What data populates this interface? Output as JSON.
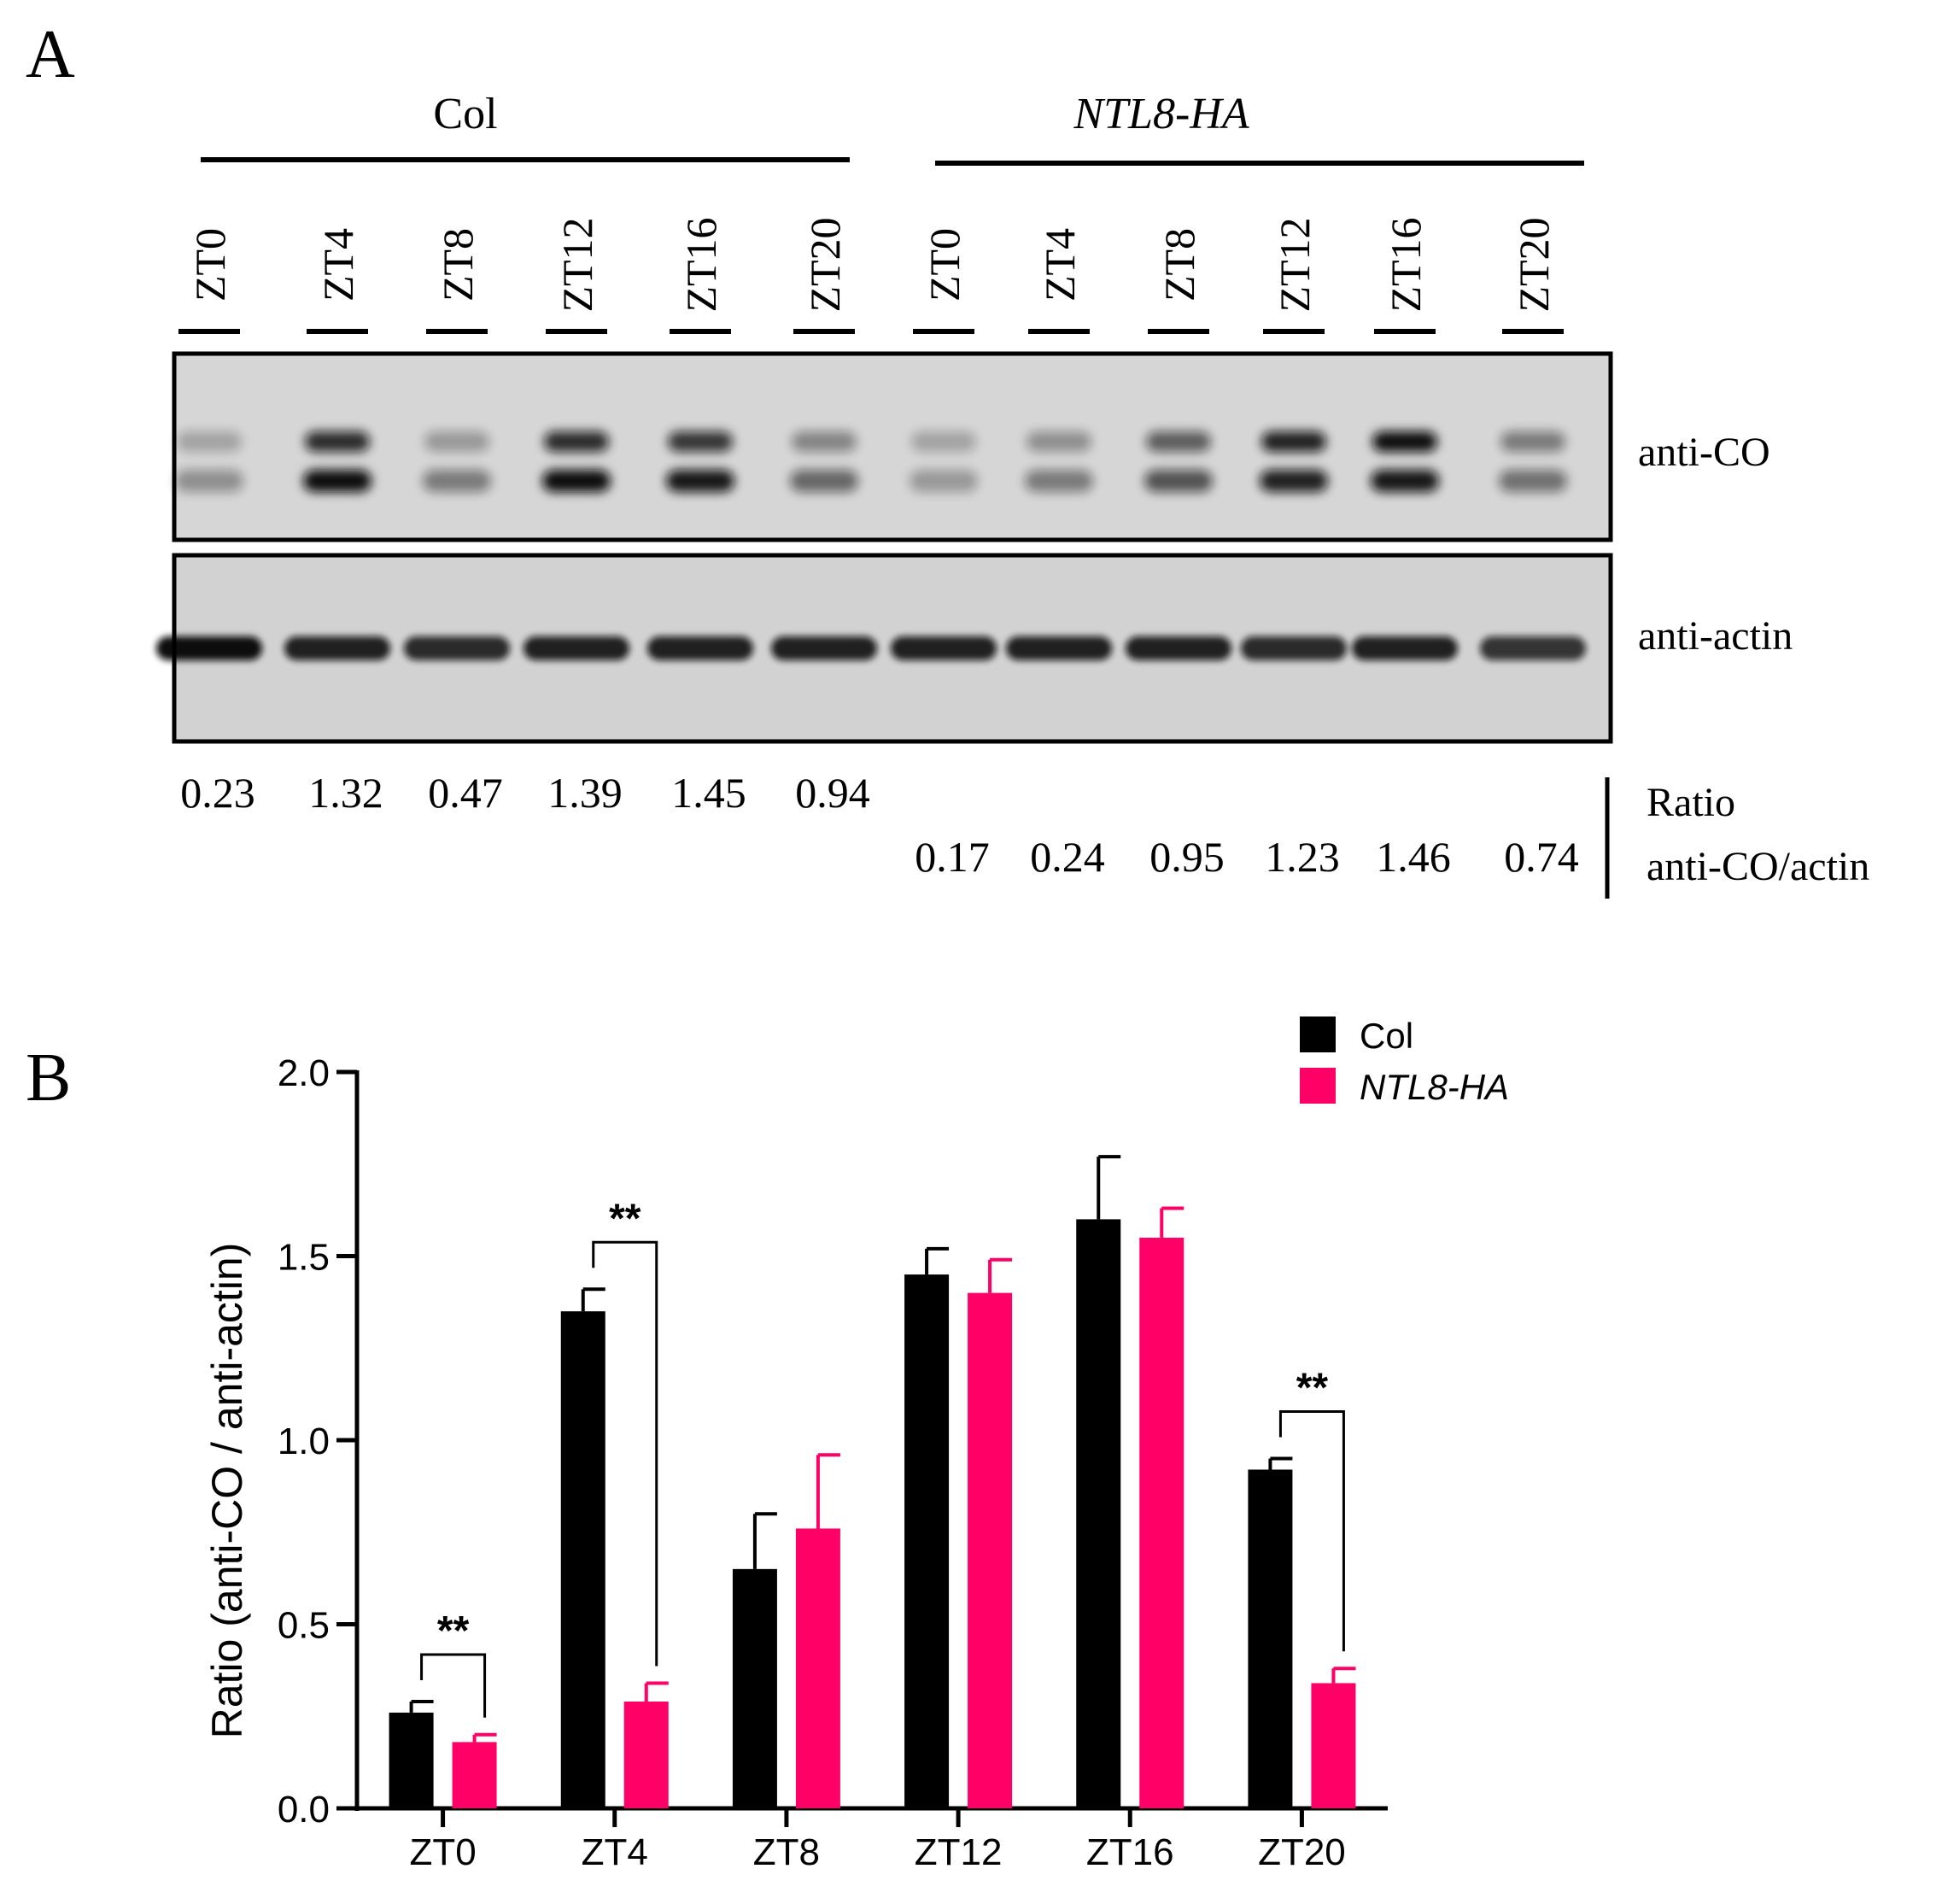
{
  "panel_a": {
    "label": "A",
    "group_labels": [
      "Col",
      "NTL8-HA"
    ],
    "lanes": [
      "ZT0",
      "ZT4",
      "ZT8",
      "ZT12",
      "ZT16",
      "ZT20",
      "ZT0",
      "ZT4",
      "ZT8",
      "ZT12",
      "ZT16",
      "ZT20"
    ],
    "blot_labels": [
      "anti-CO",
      "anti-actin"
    ],
    "ratios_col": [
      "0.23",
      "1.32",
      "0.47",
      "1.39",
      "1.45",
      "0.94"
    ],
    "ratios_ntl8": [
      "0.17",
      "0.24",
      "0.95",
      "1.23",
      "1.46",
      "0.74"
    ],
    "ratio_title_line1": "Ratio",
    "ratio_title_line2": "anti-CO/actin",
    "blot_band_intensity": {
      "anti-CO_upper": [
        0.25,
        0.85,
        0.3,
        0.85,
        0.8,
        0.4,
        0.25,
        0.35,
        0.6,
        0.9,
        1.0,
        0.45
      ],
      "anti-CO_lower": [
        0.35,
        1.0,
        0.45,
        1.0,
        0.95,
        0.55,
        0.3,
        0.45,
        0.65,
        0.9,
        0.95,
        0.5
      ],
      "anti-actin": [
        1.0,
        0.9,
        0.85,
        0.9,
        0.9,
        0.9,
        0.9,
        0.9,
        0.9,
        0.85,
        0.9,
        0.8
      ]
    }
  },
  "colors": {
    "col": "#000000",
    "ntl8": "#ff0066"
  },
  "chart_data": {
    "type": "bar",
    "panel_label": "B",
    "categories": [
      "ZT0",
      "ZT4",
      "ZT8",
      "ZT12",
      "ZT16",
      "ZT20"
    ],
    "series": [
      {
        "name": "Col",
        "values": [
          0.26,
          1.35,
          0.65,
          1.45,
          1.6,
          0.92
        ],
        "errors": [
          0.03,
          0.06,
          0.15,
          0.07,
          0.17,
          0.03
        ]
      },
      {
        "name": "NTL8-HA",
        "values": [
          0.18,
          0.29,
          0.76,
          1.4,
          1.55,
          0.34
        ],
        "errors": [
          0.02,
          0.05,
          0.2,
          0.09,
          0.08,
          0.04
        ]
      }
    ],
    "ylabel": "Ratio (anti-CO / anti-actin)",
    "xlabel": "",
    "ylim": [
      0,
      2.0
    ],
    "yticks": [
      "0.0",
      "0.5",
      "1.0",
      "1.5",
      "2.0"
    ],
    "significance": [
      {
        "category_index": 0,
        "label": "**"
      },
      {
        "category_index": 1,
        "label": "**"
      },
      {
        "category_index": 5,
        "label": "**"
      }
    ],
    "legend_position": "top-right",
    "grid": false
  }
}
